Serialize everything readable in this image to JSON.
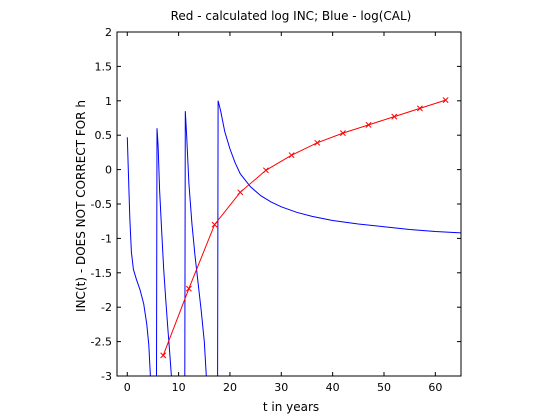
{
  "chart_data": {
    "type": "line",
    "title": "Red - calculated log INC; Blue - log(CAL)",
    "xlabel": "t in years",
    "ylabel": "INC(t) - DOES NOT CORRECT FOR h",
    "xlim": [
      -2,
      65
    ],
    "ylim": [
      -3,
      2
    ],
    "xticks": [
      0,
      10,
      20,
      30,
      40,
      50,
      60
    ],
    "yticks": [
      -3,
      -2.5,
      -2,
      -1.5,
      -1,
      -0.5,
      0,
      0.5,
      1,
      1.5,
      2
    ],
    "ytick_labels": [
      "-3",
      "-2.5",
      "-2",
      "-1.5",
      "-1",
      "-0.5",
      "0",
      "0.5",
      "1",
      "1.5",
      "2"
    ],
    "grid": false,
    "series": [
      {
        "color": "#0000ff",
        "marker": "none",
        "segments": [
          [
            [
              0.0,
              0.47
            ],
            [
              0.2,
              0.0
            ],
            [
              0.5,
              -0.7
            ],
            [
              0.8,
              -1.2
            ],
            [
              1.2,
              -1.45
            ],
            [
              1.8,
              -1.6
            ],
            [
              2.5,
              -1.75
            ],
            [
              3.2,
              -1.95
            ],
            [
              3.8,
              -2.25
            ],
            [
              4.2,
              -2.55
            ],
            [
              4.5,
              -3.0
            ]
          ],
          [
            [
              5.7,
              -3.0
            ],
            [
              5.8,
              0.6
            ],
            [
              6.0,
              0.35
            ],
            [
              6.3,
              -0.3
            ],
            [
              6.7,
              -0.9
            ],
            [
              7.1,
              -1.45
            ],
            [
              7.5,
              -1.9
            ],
            [
              7.9,
              -2.3
            ],
            [
              8.3,
              -2.7
            ],
            [
              8.6,
              -3.0
            ]
          ],
          [
            [
              11.2,
              -3.0
            ],
            [
              11.3,
              0.85
            ],
            [
              11.6,
              0.45
            ],
            [
              12.0,
              -0.2
            ],
            [
              12.6,
              -0.8
            ],
            [
              13.2,
              -1.25
            ],
            [
              13.8,
              -1.65
            ],
            [
              14.4,
              -2.05
            ],
            [
              15.0,
              -2.5
            ],
            [
              15.4,
              -3.0
            ]
          ],
          [
            [
              17.6,
              -3.0
            ],
            [
              17.7,
              1.0
            ],
            [
              18.2,
              0.85
            ],
            [
              19.0,
              0.55
            ],
            [
              20.0,
              0.3
            ],
            [
              21.0,
              0.1
            ],
            [
              22.0,
              -0.06
            ],
            [
              24.0,
              -0.25
            ],
            [
              26.0,
              -0.38
            ],
            [
              28.0,
              -0.47
            ],
            [
              30.0,
              -0.54
            ],
            [
              33.0,
              -0.62
            ],
            [
              36.0,
              -0.68
            ],
            [
              40.0,
              -0.74
            ],
            [
              45.0,
              -0.79
            ],
            [
              50.0,
              -0.83
            ],
            [
              55.0,
              -0.87
            ],
            [
              60.0,
              -0.9
            ],
            [
              65.0,
              -0.92
            ]
          ]
        ]
      },
      {
        "color": "#ff0000",
        "marker": "x",
        "points": [
          [
            7,
            -2.7
          ],
          [
            12,
            -1.73
          ],
          [
            17,
            -0.8
          ],
          [
            22,
            -0.33
          ],
          [
            27,
            -0.01
          ],
          [
            32,
            0.21
          ],
          [
            37,
            0.39
          ],
          [
            42,
            0.53
          ],
          [
            47,
            0.65
          ],
          [
            52,
            0.77
          ],
          [
            57,
            0.89
          ],
          [
            62,
            1.01
          ]
        ]
      }
    ]
  }
}
